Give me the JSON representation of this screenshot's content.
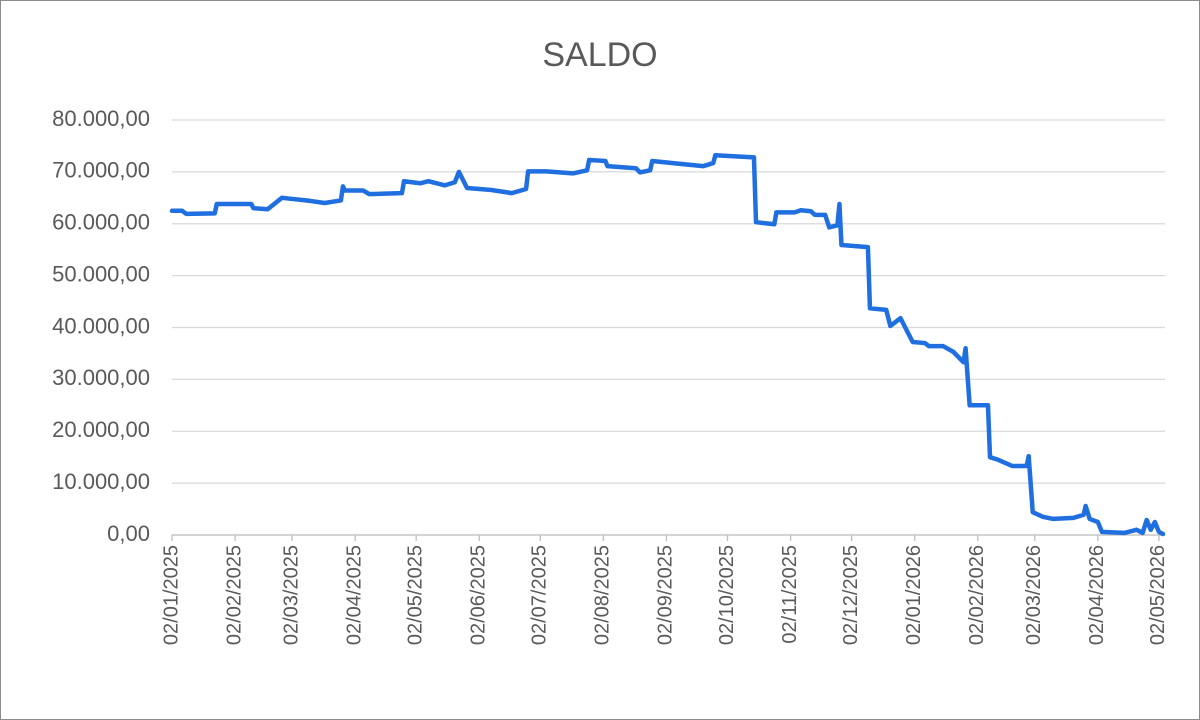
{
  "chart_data": {
    "type": "line",
    "title": "SALDO",
    "color": "#1f6fe0",
    "grid": true,
    "ylim": [
      0,
      80000
    ],
    "yticks": [
      {
        "value": 0,
        "label": "0,00"
      },
      {
        "value": 10000,
        "label": "10.000,00"
      },
      {
        "value": 20000,
        "label": "20.000,00"
      },
      {
        "value": 30000,
        "label": "30.000,00"
      },
      {
        "value": 40000,
        "label": "40.000,00"
      },
      {
        "value": 50000,
        "label": "50.000,00"
      },
      {
        "value": 60000,
        "label": "60.000,00"
      },
      {
        "value": 70000,
        "label": "70.000,00"
      },
      {
        "value": 80000,
        "label": "80.000,00"
      }
    ],
    "xlim": [
      "2025-01-02",
      "2026-05-05"
    ],
    "xticks": [
      {
        "value": "2025-01-02",
        "label": "02/01/2025"
      },
      {
        "value": "2025-02-02",
        "label": "02/02/2025"
      },
      {
        "value": "2025-03-02",
        "label": "02/03/2025"
      },
      {
        "value": "2025-04-02",
        "label": "02/04/2025"
      },
      {
        "value": "2025-05-02",
        "label": "02/05/2025"
      },
      {
        "value": "2025-06-02",
        "label": "02/06/2025"
      },
      {
        "value": "2025-07-02",
        "label": "02/07/2025"
      },
      {
        "value": "2025-08-02",
        "label": "02/08/2025"
      },
      {
        "value": "2025-09-02",
        "label": "02/09/2025"
      },
      {
        "value": "2025-10-02",
        "label": "02/10/2025"
      },
      {
        "value": "2025-11-02",
        "label": "02/11/2025"
      },
      {
        "value": "2025-12-02",
        "label": "02/12/2025"
      },
      {
        "value": "2026-01-02",
        "label": "02/01/2026"
      },
      {
        "value": "2026-02-02",
        "label": "02/02/2026"
      },
      {
        "value": "2026-03-02",
        "label": "02/03/2026"
      },
      {
        "value": "2026-04-02",
        "label": "02/04/2026"
      },
      {
        "value": "2026-05-02",
        "label": "02/05/2026"
      }
    ],
    "x": [
      "2025-01-02",
      "2025-01-07",
      "2025-01-09",
      "2025-01-23",
      "2025-01-24",
      "2025-02-10",
      "2025-02-11",
      "2025-02-18",
      "2025-02-25",
      "2025-03-11",
      "2025-03-18",
      "2025-03-26",
      "2025-03-27",
      "2025-03-28",
      "2025-04-06",
      "2025-04-09",
      "2025-04-25",
      "2025-04-26",
      "2025-05-04",
      "2025-05-08",
      "2025-05-16",
      "2025-05-21",
      "2025-05-23",
      "2025-05-27",
      "2025-06-08",
      "2025-06-18",
      "2025-06-25",
      "2025-06-26",
      "2025-07-05",
      "2025-07-18",
      "2025-07-25",
      "2025-07-26",
      "2025-08-03",
      "2025-08-04",
      "2025-08-18",
      "2025-08-20",
      "2025-08-25",
      "2025-08-26",
      "2025-09-10",
      "2025-09-20",
      "2025-09-25",
      "2025-09-26",
      "2025-10-15",
      "2025-10-16",
      "2025-10-25",
      "2025-10-26",
      "2025-11-04",
      "2025-11-07",
      "2025-11-12",
      "2025-11-14",
      "2025-11-19",
      "2025-11-21",
      "2025-11-25",
      "2025-11-26",
      "2025-11-27",
      "2025-12-10",
      "2025-12-11",
      "2025-12-19",
      "2025-12-21",
      "2025-12-26",
      "2025-12-29",
      "2026-01-01",
      "2026-01-07",
      "2026-01-09",
      "2026-01-16",
      "2026-01-21",
      "2026-01-26",
      "2026-01-27",
      "2026-01-29",
      "2026-02-07",
      "2026-02-08",
      "2026-02-12",
      "2026-02-19",
      "2026-02-26",
      "2026-02-27",
      "2026-03-01",
      "2026-03-06",
      "2026-03-11",
      "2026-03-21",
      "2026-03-26",
      "2026-03-27",
      "2026-03-29",
      "2026-04-02",
      "2026-04-04",
      "2026-04-15",
      "2026-04-21",
      "2026-04-24",
      "2026-04-26",
      "2026-04-28",
      "2026-04-30",
      "2026-05-02",
      "2026-05-04"
    ],
    "values": [
      62500,
      62500,
      61900,
      62000,
      63800,
      63800,
      63000,
      62800,
      65000,
      64400,
      64000,
      64500,
      67200,
      66400,
      66400,
      65700,
      65900,
      68200,
      67800,
      68200,
      67400,
      68000,
      70000,
      66900,
      66500,
      65900,
      66700,
      70100,
      70100,
      69700,
      70300,
      72300,
      72100,
      71100,
      70700,
      69900,
      70300,
      72100,
      71500,
      71100,
      71700,
      73200,
      72800,
      60300,
      59900,
      62200,
      62200,
      62600,
      62400,
      61700,
      61700,
      59300,
      59700,
      63800,
      55900,
      55500,
      43700,
      43400,
      40300,
      41800,
      39500,
      37200,
      37000,
      36400,
      36400,
      35300,
      33300,
      36000,
      25000,
      25000,
      15000,
      14500,
      13300,
      13300,
      15200,
      4400,
      3500,
      3100,
      3300,
      3900,
      5600,
      3100,
      2500,
      600,
      400,
      1000,
      400,
      2900,
      1000,
      2500,
      600,
      200
    ]
  }
}
